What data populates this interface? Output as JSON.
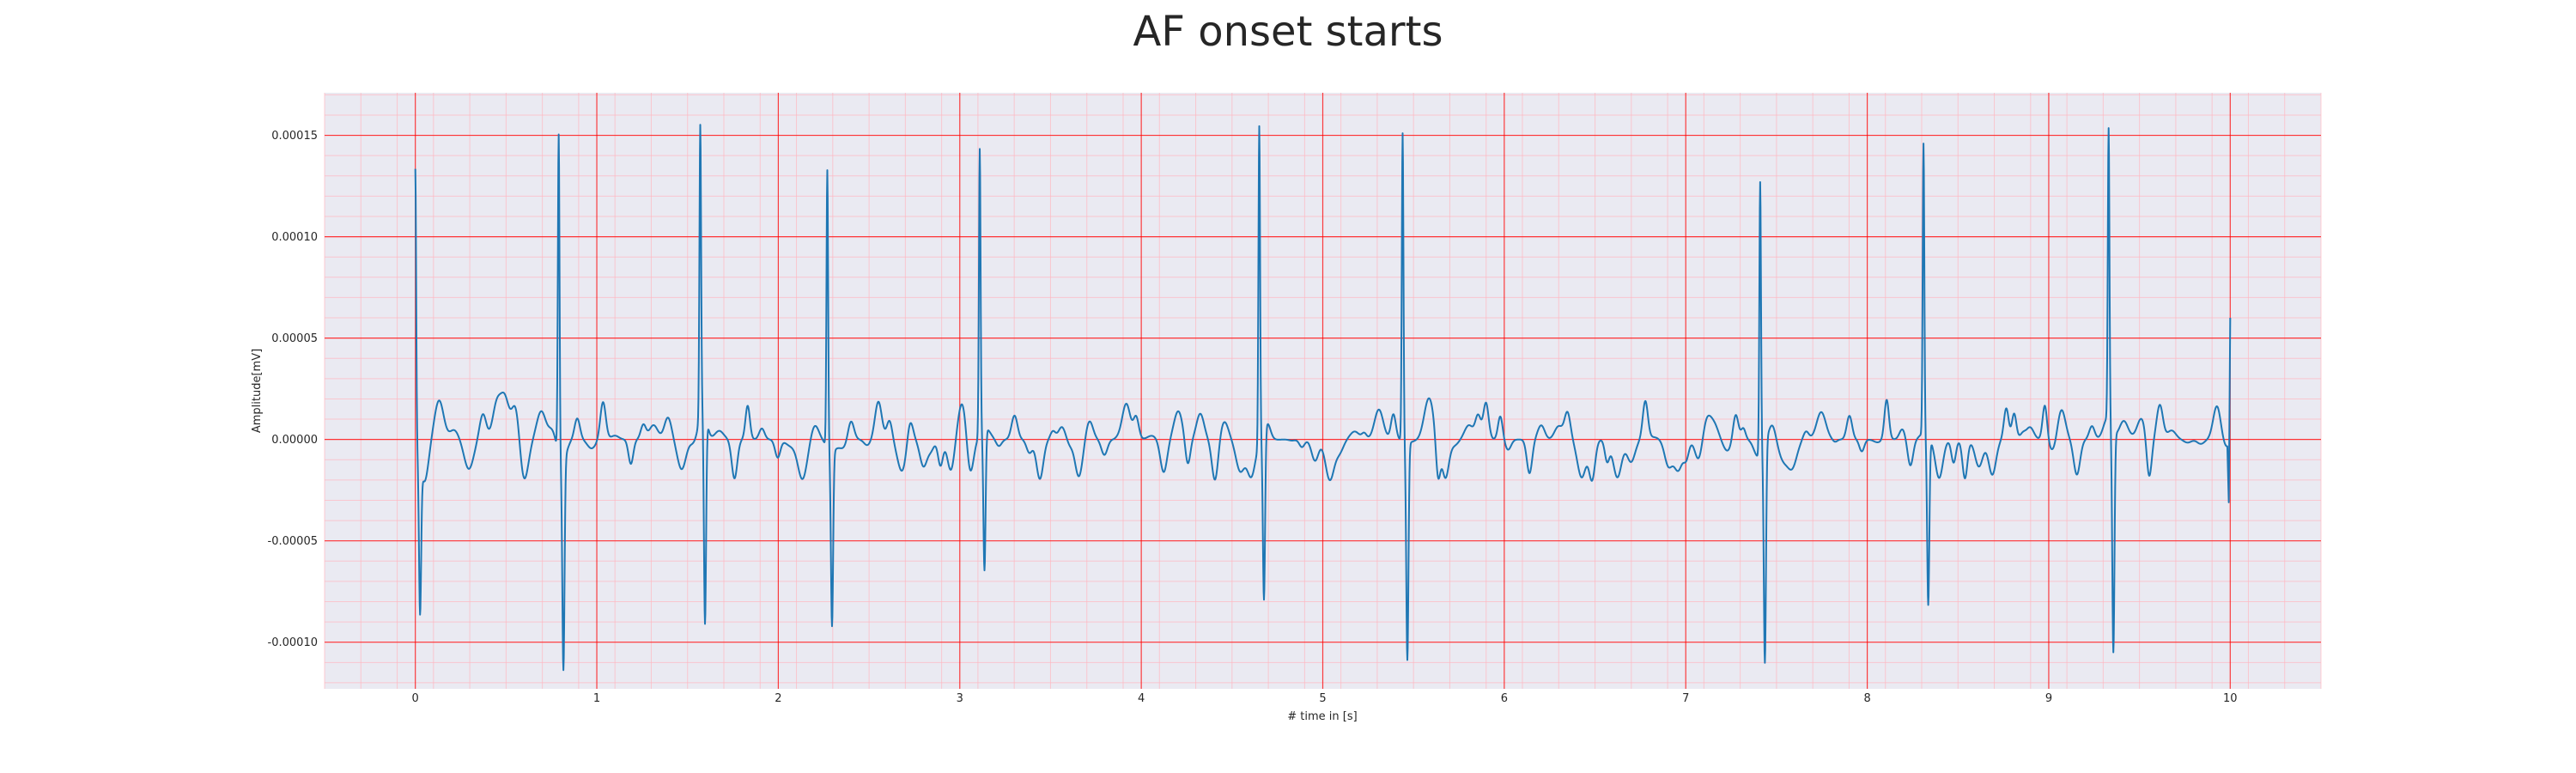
{
  "chart_data": {
    "type": "line",
    "title": "AF onset starts",
    "xlabel": "# time in [s]",
    "ylabel": "Amplitude[mV]",
    "xlim": [
      -0.5,
      10.5
    ],
    "ylim": [
      -0.000123,
      0.000171
    ],
    "x_ticks": [
      0,
      1,
      2,
      3,
      4,
      5,
      6,
      7,
      8,
      9,
      10
    ],
    "x_tick_labels": [
      "0",
      "1",
      "2",
      "3",
      "4",
      "5",
      "6",
      "7",
      "8",
      "9",
      "10"
    ],
    "y_ticks": [
      -0.0001,
      -5e-05,
      0,
      5e-05,
      0.0001,
      0.00015
    ],
    "y_tick_labels": [
      "-0.00010",
      "-0.00005",
      "0.00000",
      "0.00005",
      "0.00010",
      "0.00015"
    ],
    "grid": true,
    "minor_grid": true,
    "series": [
      {
        "color": "#1f77b4",
        "r_peaks": [
          {
            "t": 0.0,
            "peak": 0.000135,
            "trough": -7.5e-05
          },
          {
            "t": 0.79,
            "peak": 0.000158,
            "trough": -0.000103
          },
          {
            "t": 1.57,
            "peak": 0.000141,
            "trough": -0.000107
          },
          {
            "t": 2.27,
            "peak": 0.000137,
            "trough": -8.6e-05
          },
          {
            "t": 3.11,
            "peak": 0.000141,
            "trough": -7e-05
          },
          {
            "t": 4.65,
            "peak": 0.000157,
            "trough": -8.3e-05
          },
          {
            "t": 5.44,
            "peak": 0.000152,
            "trough": -0.000107
          },
          {
            "t": 7.41,
            "peak": 0.000134,
            "trough": -0.000109
          },
          {
            "t": 8.31,
            "peak": 0.000143,
            "trough": -8.3e-05
          },
          {
            "t": 9.33,
            "peak": 0.000143,
            "trough": -0.00011
          }
        ],
        "end_value": 6e-05,
        "baseline_min": -3.3e-05,
        "baseline_max": 3.1e-05
      }
    ]
  },
  "colors": {
    "background": "#eaeaf2",
    "major_grid": "#ff0000",
    "minor_grid": "#ffb6c1",
    "line": "#1f77b4"
  }
}
